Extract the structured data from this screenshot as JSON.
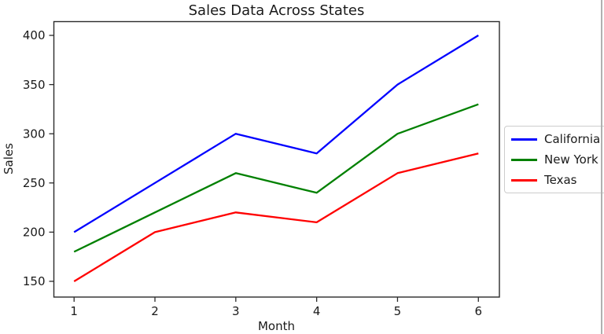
{
  "figure": {
    "background": "#ffffff",
    "window_edge_color": "#b0b0b0",
    "text_color": "#1a1a1a",
    "axis_color": "#2b2b2b",
    "legend_border_color": "#cccccc"
  },
  "chart_data": {
    "type": "line",
    "title": "Sales Data Across States",
    "xlabel": "Month",
    "ylabel": "Sales",
    "x": [
      1,
      2,
      3,
      4,
      5,
      6
    ],
    "series": [
      {
        "name": "California",
        "color": "#0000ff",
        "values": [
          200,
          250,
          300,
          280,
          350,
          400
        ]
      },
      {
        "name": "New York",
        "color": "#008000",
        "values": [
          180,
          220,
          260,
          240,
          300,
          330
        ]
      },
      {
        "name": "Texas",
        "color": "#ff0000",
        "values": [
          150,
          200,
          220,
          210,
          260,
          280
        ]
      }
    ],
    "xticks": [
      1,
      2,
      3,
      4,
      5,
      6
    ],
    "yticks": [
      150,
      200,
      250,
      300,
      350,
      400
    ],
    "xlim": [
      0.75,
      6.26
    ],
    "ylim": [
      134,
      414
    ],
    "grid": false,
    "legend_position": "outside-right"
  }
}
